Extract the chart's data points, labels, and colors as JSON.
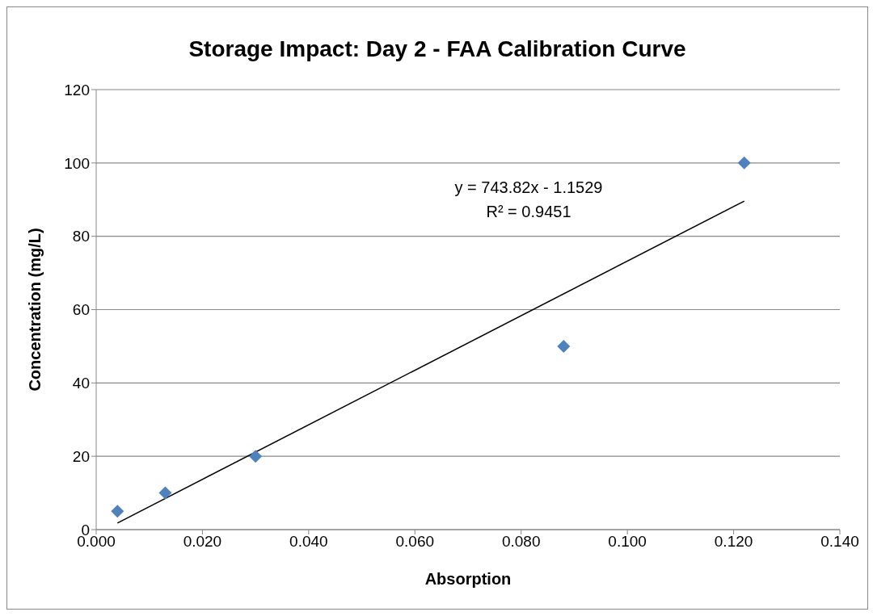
{
  "chart_data": {
    "type": "scatter",
    "title": "Storage Impact: Day 2 - FAA Calibration Curve",
    "xlabel": "Absorption",
    "ylabel": "Concentration (mg/L)",
    "x": [
      0.004,
      0.013,
      0.03,
      0.088,
      0.122
    ],
    "series": [
      {
        "color": "#4f81bd",
        "values": [
          5,
          10,
          20,
          50,
          100
        ],
        "marker": "diamond"
      },
      {
        "type": "line",
        "color": "#000000",
        "x": [
          0.004,
          0.122
        ],
        "values": [
          1.8,
          89.6
        ],
        "marker": "none",
        "line_style": "solid"
      }
    ],
    "annotations": [
      "y = 743.82x - 1.1529",
      "R² = 0.9451"
    ],
    "xlim": [
      0,
      0.14
    ],
    "xticks": [
      {
        "value": 0,
        "label": "0.000"
      },
      {
        "value": 0.02,
        "label": "0.020"
      },
      {
        "value": 0.04,
        "label": "0.040"
      },
      {
        "value": 0.06,
        "label": "0.060"
      },
      {
        "value": 0.08,
        "label": "0.080"
      },
      {
        "value": 0.1,
        "label": "0.100"
      },
      {
        "value": 0.12,
        "label": "0.120"
      },
      {
        "value": 0.14,
        "label": "0.140"
      }
    ],
    "ylim": [
      0,
      120
    ],
    "yticks": [
      0,
      20,
      40,
      60,
      80,
      100,
      120
    ],
    "grid": "y"
  }
}
